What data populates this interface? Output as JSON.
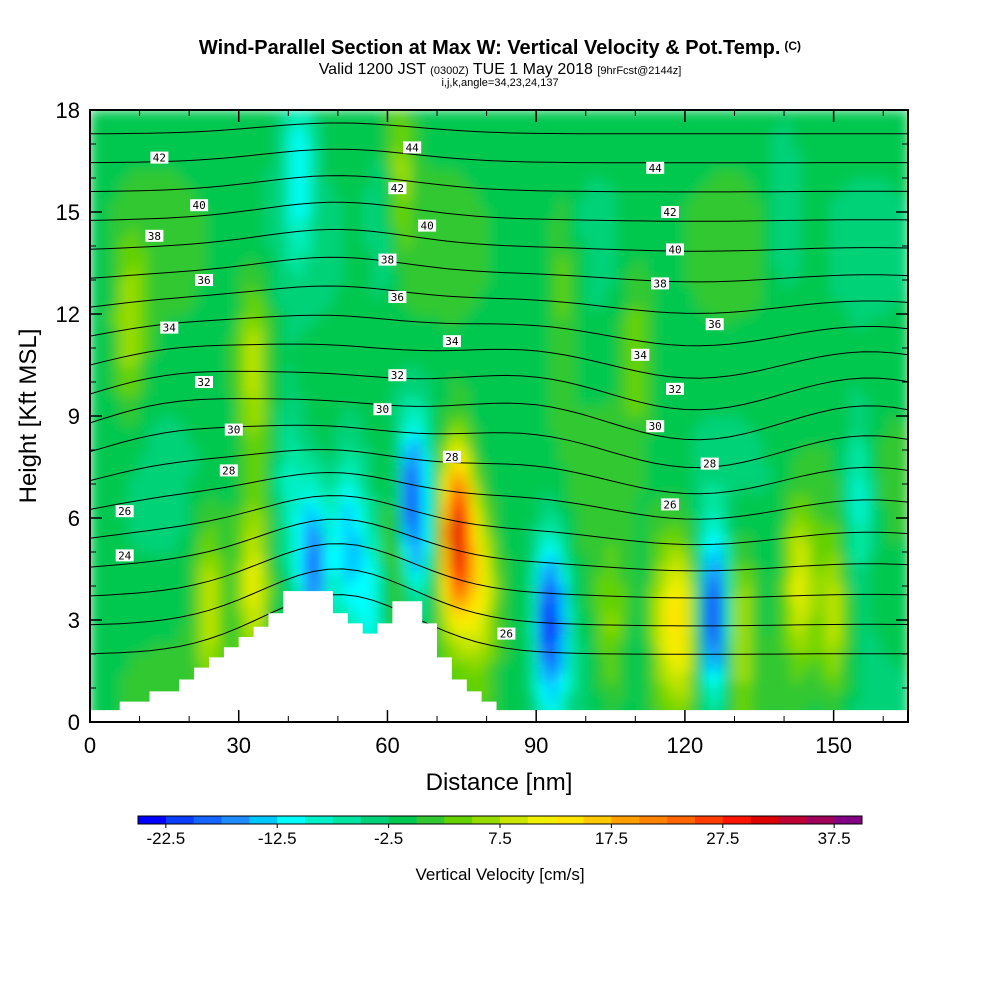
{
  "header": {
    "title": "Wind-Parallel Section at Max W: Vertical Velocity & Pot.Temp.",
    "title_mark": "(C)",
    "valid_prefix": "Valid 1200 JST",
    "valid_utc": "(0300Z)",
    "valid_date": "TUE 1 May 2018",
    "forecast": "[9hrFcst@2144z]",
    "indices": "i,j,k,angle=34,23,24,137"
  },
  "chart_data": {
    "type": "heatmap",
    "xlabel": "Distance [nm]",
    "ylabel": "Height [Kft MSL]",
    "xlim": [
      0,
      165
    ],
    "ylim": [
      0,
      18
    ],
    "x_ticks": [
      "0",
      "30",
      "60",
      "90",
      "120",
      "150"
    ],
    "y_ticks": [
      "0",
      "3",
      "6",
      "9",
      "12",
      "15",
      "18"
    ],
    "x_tick_values": [
      0,
      30,
      60,
      90,
      120,
      150
    ],
    "y_tick_values": [
      0,
      3,
      6,
      9,
      12,
      15,
      18
    ],
    "colorbar": {
      "title": "Vertical Velocity [cm/s]",
      "min": -25,
      "max": 40,
      "step": 2.5,
      "tick_labels": [
        "-22.5",
        "-12.5",
        "-2.5",
        "7.5",
        "17.5",
        "27.5",
        "37.5"
      ],
      "tick_values": [
        -22.5,
        -12.5,
        -2.5,
        7.5,
        17.5,
        27.5,
        37.5
      ],
      "colors": [
        "#0000ff",
        "#0a3cff",
        "#1464ff",
        "#1e8cff",
        "#00c8ff",
        "#00ffff",
        "#00f0c8",
        "#00e6a0",
        "#00d278",
        "#00c850",
        "#32c832",
        "#64d200",
        "#96dc00",
        "#c8e600",
        "#f0f000",
        "#ffe600",
        "#ffc800",
        "#ffa000",
        "#ff8200",
        "#ff6400",
        "#ff3c00",
        "#ff1400",
        "#dc0000",
        "#be0032",
        "#a0005a",
        "#820082"
      ]
    },
    "velocity_features": [
      {
        "x": 24,
        "z": 3.5,
        "w": 10
      },
      {
        "x": 33,
        "z": 3.8,
        "w": 12
      },
      {
        "x": 40,
        "z": 7.0,
        "w": -8
      },
      {
        "x": 45,
        "z": 4.8,
        "w": -18
      },
      {
        "x": 52,
        "z": 5.5,
        "w": -14
      },
      {
        "x": 57,
        "z": 3.5,
        "w": -10
      },
      {
        "x": 62,
        "z": 5.0,
        "w": 10
      },
      {
        "x": 65,
        "z": 6.2,
        "w": -22
      },
      {
        "x": 74,
        "z": 5.5,
        "w": 35
      },
      {
        "x": 79,
        "z": 4.0,
        "w": 12
      },
      {
        "x": 93,
        "z": 3.0,
        "w": -22
      },
      {
        "x": 105,
        "z": 2.5,
        "w": 7
      },
      {
        "x": 116,
        "z": 3.0,
        "w": 10
      },
      {
        "x": 120,
        "z": 3.0,
        "w": 12
      },
      {
        "x": 126,
        "z": 3.0,
        "w": -22
      },
      {
        "x": 131,
        "z": 3.0,
        "w": 10
      },
      {
        "x": 143,
        "z": 4.0,
        "w": 12
      },
      {
        "x": 150,
        "z": 3.0,
        "w": 10
      },
      {
        "x": 155,
        "z": 6.5,
        "w": -10
      },
      {
        "x": 60,
        "z": 15.0,
        "w": -7
      },
      {
        "x": 42,
        "z": 16.5,
        "w": -10
      },
      {
        "x": 62,
        "z": 16.0,
        "w": 10
      },
      {
        "x": 8,
        "z": 11.5,
        "w": 8
      },
      {
        "x": 33,
        "z": 10.5,
        "w": 10
      },
      {
        "x": 95,
        "z": 13.0,
        "w": 6
      },
      {
        "x": 110,
        "z": 11.0,
        "w": 6
      },
      {
        "x": 140,
        "z": 15.0,
        "w": -4
      }
    ],
    "terrain": [
      {
        "x": 0,
        "z": 0.35
      },
      {
        "x": 6,
        "z": 0.35
      },
      {
        "x": 6,
        "z": 0.6
      },
      {
        "x": 12,
        "z": 0.6
      },
      {
        "x": 12,
        "z": 0.9
      },
      {
        "x": 18,
        "z": 0.9
      },
      {
        "x": 18,
        "z": 1.25
      },
      {
        "x": 21,
        "z": 1.25
      },
      {
        "x": 21,
        "z": 1.6
      },
      {
        "x": 24,
        "z": 1.6
      },
      {
        "x": 24,
        "z": 1.9
      },
      {
        "x": 27,
        "z": 1.9
      },
      {
        "x": 27,
        "z": 2.2
      },
      {
        "x": 30,
        "z": 2.2
      },
      {
        "x": 30,
        "z": 2.5
      },
      {
        "x": 33,
        "z": 2.5
      },
      {
        "x": 33,
        "z": 2.8
      },
      {
        "x": 36,
        "z": 2.8
      },
      {
        "x": 36,
        "z": 3.2
      },
      {
        "x": 39,
        "z": 3.2
      },
      {
        "x": 39,
        "z": 3.85
      },
      {
        "x": 49,
        "z": 3.85
      },
      {
        "x": 49,
        "z": 3.2
      },
      {
        "x": 52,
        "z": 3.2
      },
      {
        "x": 52,
        "z": 2.9
      },
      {
        "x": 55,
        "z": 2.9
      },
      {
        "x": 55,
        "z": 2.6
      },
      {
        "x": 58,
        "z": 2.6
      },
      {
        "x": 58,
        "z": 2.9
      },
      {
        "x": 61,
        "z": 2.9
      },
      {
        "x": 61,
        "z": 3.55
      },
      {
        "x": 67,
        "z": 3.55
      },
      {
        "x": 67,
        "z": 2.9
      },
      {
        "x": 70,
        "z": 2.9
      },
      {
        "x": 70,
        "z": 1.9
      },
      {
        "x": 73,
        "z": 1.9
      },
      {
        "x": 73,
        "z": 1.25
      },
      {
        "x": 76,
        "z": 1.25
      },
      {
        "x": 76,
        "z": 0.9
      },
      {
        "x": 79,
        "z": 0.9
      },
      {
        "x": 79,
        "z": 0.6
      },
      {
        "x": 82,
        "z": 0.6
      },
      {
        "x": 82,
        "z": 0.35
      },
      {
        "x": 85,
        "z": 0.35
      },
      {
        "x": 85,
        "z": 0.35
      },
      {
        "x": 165,
        "z": 0.35
      }
    ],
    "theta_levels": [
      24,
      25,
      26,
      27,
      28,
      29,
      30,
      31,
      32,
      33,
      34,
      35,
      36,
      37,
      38,
      39,
      40,
      41,
      42,
      43,
      44
    ],
    "contour_labels": [
      {
        "x": 7,
        "z": 4.9,
        "text": "24"
      },
      {
        "x": 7,
        "z": 6.2,
        "text": "26"
      },
      {
        "x": 28,
        "z": 7.4,
        "text": "28"
      },
      {
        "x": 29,
        "z": 8.6,
        "text": "30"
      },
      {
        "x": 23,
        "z": 10.0,
        "text": "32"
      },
      {
        "x": 16,
        "z": 11.6,
        "text": "34"
      },
      {
        "x": 23,
        "z": 13.0,
        "text": "36"
      },
      {
        "x": 13,
        "z": 14.3,
        "text": "38"
      },
      {
        "x": 22,
        "z": 15.2,
        "text": "40"
      },
      {
        "x": 14,
        "z": 16.6,
        "text": "42"
      },
      {
        "x": 59,
        "z": 9.2,
        "text": "30"
      },
      {
        "x": 62,
        "z": 10.2,
        "text": "32"
      },
      {
        "x": 73,
        "z": 11.2,
        "text": "34"
      },
      {
        "x": 62,
        "z": 12.5,
        "text": "36"
      },
      {
        "x": 60,
        "z": 13.6,
        "text": "38"
      },
      {
        "x": 68,
        "z": 14.6,
        "text": "40"
      },
      {
        "x": 62,
        "z": 15.7,
        "text": "42"
      },
      {
        "x": 65,
        "z": 16.9,
        "text": "44"
      },
      {
        "x": 73,
        "z": 7.8,
        "text": "28"
      },
      {
        "x": 84,
        "z": 2.6,
        "text": "26"
      },
      {
        "x": 114,
        "z": 8.7,
        "text": "30"
      },
      {
        "x": 125,
        "z": 7.6,
        "text": "28"
      },
      {
        "x": 117,
        "z": 6.4,
        "text": "26"
      },
      {
        "x": 118,
        "z": 9.8,
        "text": "32"
      },
      {
        "x": 111,
        "z": 10.8,
        "text": "34"
      },
      {
        "x": 126,
        "z": 11.7,
        "text": "36"
      },
      {
        "x": 115,
        "z": 12.9,
        "text": "38"
      },
      {
        "x": 118,
        "z": 13.9,
        "text": "40"
      },
      {
        "x": 117,
        "z": 15.0,
        "text": "42"
      },
      {
        "x": 114,
        "z": 16.3,
        "text": "44"
      }
    ]
  }
}
